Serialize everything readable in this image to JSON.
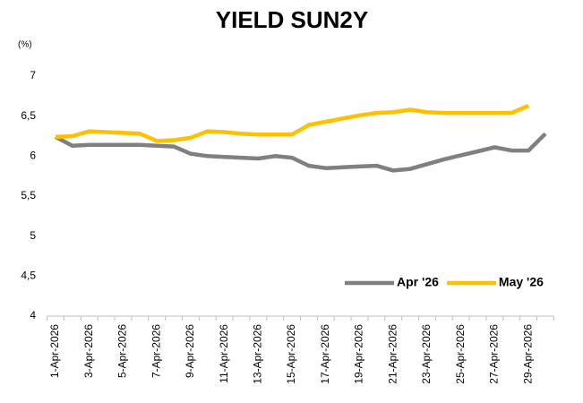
{
  "chart_data": {
    "type": "line",
    "title": "YIELD SUN2Y",
    "y_label": "(%)",
    "categories": [
      "1-Apr-2026",
      null,
      "3-Apr-2026",
      null,
      "5-Apr-2026",
      null,
      "7-Apr-2026",
      null,
      "9-Apr-2026",
      null,
      "11-Apr-2026",
      null,
      "13-Apr-2026",
      null,
      "15-Apr-2026",
      null,
      "17-Apr-2026",
      null,
      "19-Apr-2026",
      null,
      "21-Apr-2026",
      null,
      "23-Apr-2026",
      null,
      "25-Apr-2026",
      null,
      "27-Apr-2026",
      null,
      "29-Apr-2026",
      null
    ],
    "series": [
      {
        "name": "Apr '26",
        "color": "#808080",
        "values": [
          6.24,
          6.13,
          6.14,
          6.14,
          6.14,
          6.14,
          6.13,
          6.12,
          6.03,
          6.0,
          5.99,
          5.98,
          5.97,
          6.0,
          5.98,
          5.88,
          5.85,
          5.86,
          5.87,
          5.88,
          5.82,
          5.84,
          5.9,
          5.96,
          6.01,
          6.06,
          6.11,
          6.07,
          6.07,
          6.28
        ]
      },
      {
        "name": "May '26",
        "color": "#FFC000",
        "values": [
          6.24,
          6.25,
          6.31,
          6.3,
          6.29,
          6.28,
          6.19,
          6.2,
          6.23,
          6.31,
          6.3,
          6.28,
          6.27,
          6.27,
          6.27,
          6.39,
          6.43,
          6.47,
          6.51,
          6.54,
          6.55,
          6.58,
          6.55,
          6.54,
          6.54,
          6.54,
          6.54,
          6.54,
          6.63,
          null
        ]
      }
    ],
    "ylim": [
      4,
      7
    ],
    "yticks": [
      4,
      {
        "value": 4.5,
        "label": "4,5"
      },
      5,
      {
        "value": 5.5,
        "label": "5,5"
      },
      6,
      {
        "value": 6.5,
        "label": "6,5"
      },
      7
    ],
    "grid": false,
    "legend": "lower right"
  }
}
